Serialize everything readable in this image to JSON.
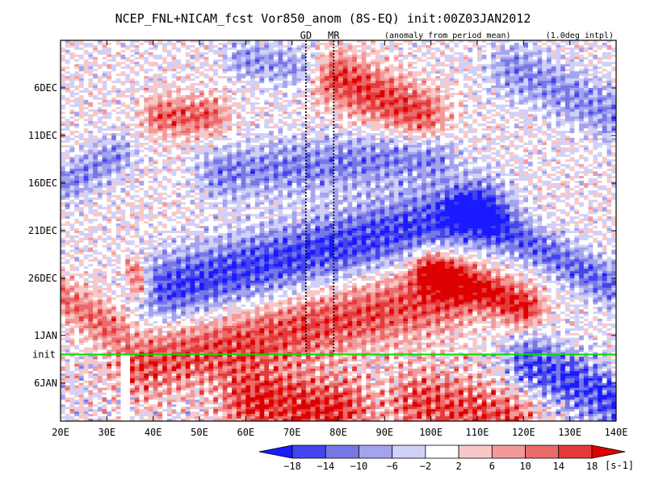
{
  "chart_data": {
    "type": "heatmap",
    "title": "NCEP_FNL+NICAM_fcst Vor850_anom (8S-EQ) init:00Z03JAN2012",
    "subtitle_left": "(anomaly from period mean)",
    "subtitle_right": "(1.0deg intpl)",
    "x_ticks": [
      "20E",
      "30E",
      "40E",
      "50E",
      "60E",
      "70E",
      "80E",
      "90E",
      "100E",
      "110E",
      "120E",
      "130E",
      "140E"
    ],
    "x_tick_values": [
      20,
      30,
      40,
      50,
      60,
      70,
      80,
      90,
      100,
      110,
      120,
      130,
      140
    ],
    "xlim": [
      20,
      140
    ],
    "y_ticks": [
      "6DEC",
      "11DEC",
      "16DEC",
      "21DEC",
      "26DEC",
      "1JAN",
      "6JAN"
    ],
    "y_tick_days": [
      5,
      10,
      15,
      20,
      25,
      31,
      36
    ],
    "ylim_days": [
      0,
      40
    ],
    "y_direction": "time increases downward",
    "init_line": {
      "label": "init",
      "day": 33,
      "color": "#00dd00"
    },
    "site_markers": [
      {
        "label": "GD",
        "lon": 73
      },
      {
        "label": "MR",
        "lon": 79
      }
    ],
    "colorbar": {
      "levels": [
        -18,
        -14,
        -10,
        -6,
        -2,
        2,
        6,
        10,
        14,
        18
      ],
      "tick_labels": [
        "−18",
        "−14",
        "−10",
        "−6",
        "−2",
        "2",
        "6",
        "10",
        "14",
        "18"
      ],
      "colors": [
        "#1a1aff",
        "#4444ee",
        "#7777e6",
        "#a3a3ee",
        "#d0d0f8",
        "#ffffff",
        "#f8c8c8",
        "#f29a9a",
        "#ec6a6a",
        "#e43a3a",
        "#dd0000"
      ],
      "units": "[s-1]"
    },
    "features": [
      {
        "lon0": 44,
        "day0": 26,
        "lon1": 110,
        "day1": 18,
        "width": 5,
        "amp": -17
      },
      {
        "lon0": 38,
        "day0": 34,
        "lon1": 102,
        "day1": 27,
        "width": 5,
        "amp": 15
      },
      {
        "lon0": 55,
        "day0": 14,
        "lon1": 100,
        "day1": 12,
        "width": 4,
        "amp": -11
      },
      {
        "lon0": 80,
        "day0": 4,
        "lon1": 98,
        "day1": 8,
        "width": 4,
        "amp": 16
      },
      {
        "lon0": 42,
        "day0": 8,
        "lon1": 52,
        "day1": 8,
        "width": 3,
        "amp": 13
      },
      {
        "lon0": 20,
        "day0": 27,
        "lon1": 30,
        "day1": 30,
        "width": 3,
        "amp": 11
      },
      {
        "lon0": 100,
        "day0": 24,
        "lon1": 120,
        "day1": 28,
        "width": 3,
        "amp": 19
      },
      {
        "lon0": 108,
        "day0": 18,
        "lon1": 140,
        "day1": 26,
        "width": 3,
        "amp": -13
      },
      {
        "lon0": 62,
        "day0": 38,
        "lon1": 80,
        "day1": 39,
        "width": 5,
        "amp": 18
      },
      {
        "lon0": 98,
        "day0": 38,
        "lon1": 116,
        "day1": 40,
        "width": 5,
        "amp": 15
      },
      {
        "lon0": 122,
        "day0": 34,
        "lon1": 140,
        "day1": 38,
        "width": 4,
        "amp": -17
      },
      {
        "lon0": 22,
        "day0": 15,
        "lon1": 32,
        "day1": 12,
        "width": 3,
        "amp": -10
      },
      {
        "lon0": 60,
        "day0": 2,
        "lon1": 72,
        "day1": 3,
        "width": 3,
        "amp": -9
      },
      {
        "lon0": 118,
        "day0": 3,
        "lon1": 140,
        "day1": 8,
        "width": 4,
        "amp": -10
      },
      {
        "lon0": 36,
        "day0": 24,
        "lon1": 37,
        "day1": 26,
        "width": 1.5,
        "amp": 15
      }
    ],
    "missing_strips": [
      {
        "lon0": 33,
        "lon1": 35,
        "day0": 33,
        "day1": 40
      }
    ]
  }
}
